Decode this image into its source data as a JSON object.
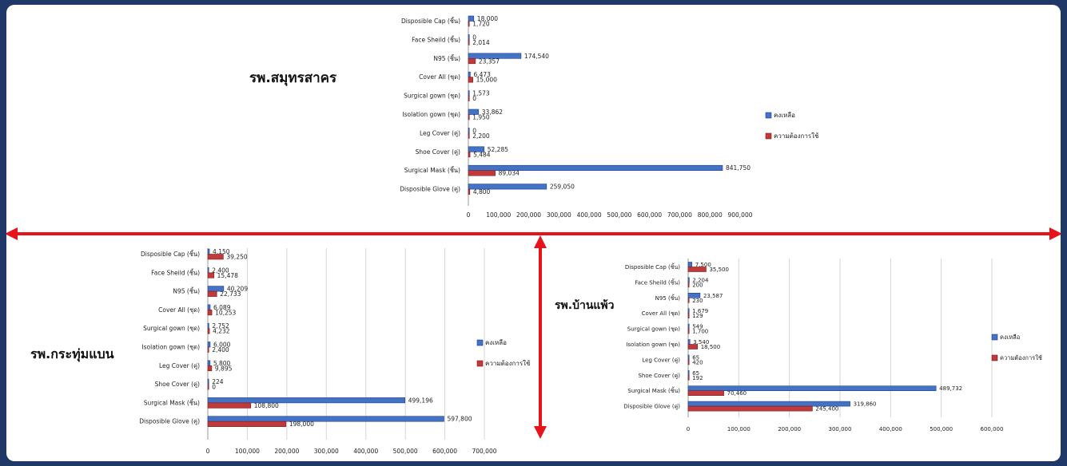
{
  "colors": {
    "remaining": "#4472c4",
    "remaining_edge": "#1f3f8f",
    "need": "#c0393b",
    "need_edge": "#7d1f20",
    "arrow": "#e8121a",
    "frame": "#1f3868"
  },
  "chart_data": [
    {
      "type": "bar",
      "orientation": "horizontal",
      "title": "รพ.สมุทรสาคร",
      "categories": [
        "Disposible Cap (ชิ้น)",
        "Face Sheild (ชิ้น)",
        "N95 (ชิ้น)",
        "Cover All (ชุด)",
        "Surgical gown (ชุด)",
        "Isolation gown (ชุด)",
        "Leg Cover (คู่)",
        "Shoe Cover (คู่)",
        "Surgical Mask (ชิ้น)",
        "Disposible Glove (คู่)"
      ],
      "series": [
        {
          "name": "คงเหลือ",
          "values": [
            18000,
            0,
            174540,
            6473,
            1573,
            33862,
            0,
            52285,
            841750,
            259050
          ],
          "labels": [
            "18,000",
            "0",
            "174,540",
            "6,473",
            "1,573",
            "33,862",
            "0",
            "52,285",
            "841,750",
            "259,050"
          ]
        },
        {
          "name": "ความต้องการใช้",
          "values": [
            1720,
            2014,
            23357,
            15000,
            0,
            1950,
            2200,
            5484,
            89034,
            4800
          ],
          "labels": [
            "1,720",
            "2,014",
            "23,357",
            "15,000",
            "0",
            "1,950",
            "2,200",
            "5,484",
            "89,034",
            "4,800"
          ]
        }
      ],
      "xlim": [
        0,
        900000
      ],
      "ticks": [
        "0",
        "100,000",
        "200,000",
        "300,000",
        "400,000",
        "500,000",
        "600,000",
        "700,000",
        "800,000",
        "900,000"
      ],
      "grid": false,
      "legend": "right"
    },
    {
      "type": "bar",
      "orientation": "horizontal",
      "title": "รพ.กระทุ่มแบน",
      "categories": [
        "Disposible Cap (ชิ้น)",
        "Face Sheild (ชิ้น)",
        "N95 (ชิ้น)",
        "Cover All (ชุด)",
        "Surgical gown (ชุด)",
        "Isolation gown (ชุด)",
        "Leg Cover (คู่)",
        "Shoe Cover (คู่)",
        "Surgical Mask (ชิ้น)",
        "Disposible Glove (คู่)"
      ],
      "series": [
        {
          "name": "คงเหลือ",
          "values": [
            4150,
            2400,
            40209,
            6089,
            2752,
            6000,
            5800,
            224,
            499196,
            597800
          ],
          "labels": [
            "4,150",
            "2,400",
            "40,209",
            "6,089",
            "2,752",
            "6,000",
            "5,800",
            "224",
            "499,196",
            "597,800"
          ]
        },
        {
          "name": "ความต้องการใช้",
          "values": [
            39250,
            15478,
            22733,
            10253,
            4232,
            2400,
            9895,
            0,
            108800,
            198000
          ],
          "labels": [
            "39,250",
            "15,478",
            "22,733",
            "10,253",
            "4,232",
            "2,400",
            "9,895",
            "0",
            "108,800",
            "198,000"
          ]
        }
      ],
      "xlim": [
        0,
        700000
      ],
      "ticks": [
        "0",
        "100,000",
        "200,000",
        "300,000",
        "400,000",
        "500,000",
        "600,000",
        "700,000"
      ],
      "grid": true,
      "legend": "right"
    },
    {
      "type": "bar",
      "orientation": "horizontal",
      "title": "รพ.บ้านแพ้ว",
      "categories": [
        "Disposible Cap (ชิ้น)",
        "Face Sheild (ชิ้น)",
        "N95 (ชิ้น)",
        "Cover All (ชุด)",
        "Surgical gown (ชุด)",
        "Isolation gown (ชุด)",
        "Leg Cover (คู่)",
        "Shoe Cover (คู่)",
        "Surgical Mask (ชิ้น)",
        "Disposible Glove (คู่)"
      ],
      "series": [
        {
          "name": "คงเหลือ",
          "values": [
            7500,
            2204,
            23587,
            1679,
            549,
            3540,
            65,
            65,
            489732,
            319860
          ],
          "labels": [
            "7,500",
            "2,204",
            "23,587",
            "1,679",
            "549",
            "3,540",
            "65",
            "65",
            "489,732",
            "319,860"
          ]
        },
        {
          "name": "ความต้องการใช้",
          "values": [
            35500,
            200,
            230,
            129,
            1700,
            18500,
            420,
            192,
            70460,
            245400
          ],
          "labels": [
            "35,500",
            "200",
            "230",
            "129",
            "1,700",
            "18,500",
            "420",
            "192",
            "70,460",
            "245,400"
          ]
        }
      ],
      "xlim": [
        0,
        600000
      ],
      "ticks": [
        "0",
        "100,000",
        "200,000",
        "300,000",
        "400,000",
        "500,000",
        "600,000"
      ],
      "grid": true,
      "legend": "right"
    }
  ]
}
